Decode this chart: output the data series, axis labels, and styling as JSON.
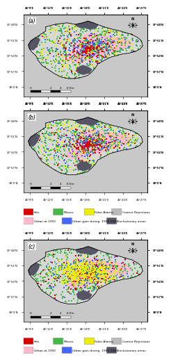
{
  "fig_bg": "#ffffff",
  "map_outer_bg": "#c8c8c8",
  "map_inner_bg": "#d8d8d8",
  "colors": {
    "hits": "#dd0000",
    "misses": "#44bb44",
    "false_alarms": "#eeee00",
    "correct_rejections": "#bbbbbb",
    "urban_1992": "#ffbbcc",
    "urban_gain": "#4466ff",
    "exclusionary": "#555566"
  },
  "legend_labels": [
    "Hits",
    "Misses",
    "False Alarms",
    "Correct Rejections",
    "Urban at 1992",
    "Urban gain during  1992-2002",
    "Exclusionary areas"
  ],
  "legend_colors": [
    "#dd0000",
    "#44bb44",
    "#eeee00",
    "#bbbbbb",
    "#ffbbcc",
    "#4466ff",
    "#555566"
  ],
  "panels": [
    "(a)",
    "(b)",
    "(c)"
  ],
  "coord_x": [
    "46°9'E",
    "46°12'E",
    "46°15'E",
    "46°18'E",
    "46°21'E",
    "46°24'E",
    "46°27'E"
  ],
  "coord_y": [
    "38°0'N",
    "37°57'N",
    "37°54'N",
    "37°51'N",
    "37°48'N"
  ]
}
